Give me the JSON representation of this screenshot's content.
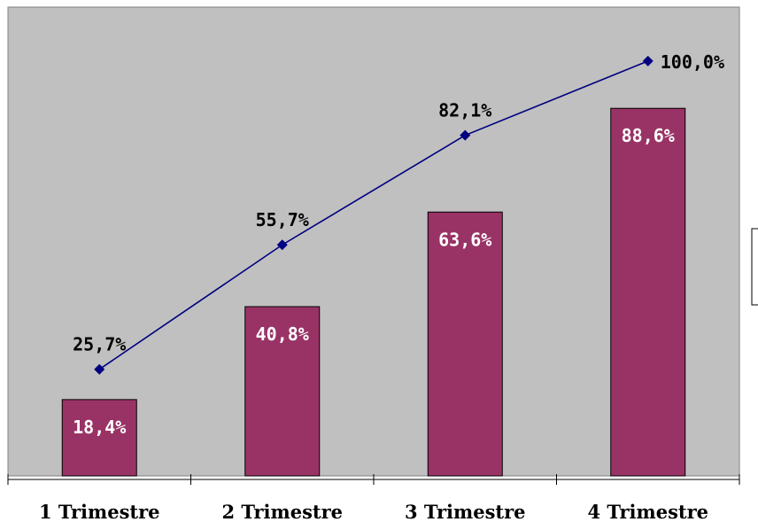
{
  "chart_data": {
    "type": "bar",
    "categories": [
      "1 Trimestre",
      "2 Trimestre",
      "3 Trimestre",
      "4 Trimestre"
    ],
    "series": [
      {
        "type": "bar",
        "values": [
          18.4,
          40.8,
          63.6,
          88.6
        ],
        "labels": [
          "18,4%",
          "40,8%",
          "63,6%",
          "88,6%"
        ],
        "color": "#993366"
      },
      {
        "type": "line",
        "values": [
          25.7,
          55.7,
          82.1,
          100.0
        ],
        "labels": [
          "25,7%",
          "55,7%",
          "82,1%",
          "100,0%"
        ],
        "color": "#000080",
        "marker": "diamond"
      }
    ],
    "title": "",
    "xlabel": "",
    "ylabel": "",
    "ylim": [
      0,
      113
    ],
    "grid": false,
    "plot_background": "#c0c0c0",
    "legend": "right, cropped"
  }
}
